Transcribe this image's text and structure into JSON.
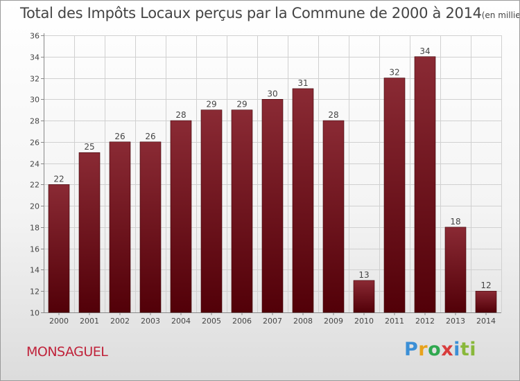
{
  "title": "Total des Impôts Locaux perçus par la Commune de 2000 à 2014",
  "unit": "(en milliers d'€)",
  "commune": "MONSAGUEL",
  "logo": {
    "text": "Proxiti",
    "letters": [
      "P",
      "r",
      "o",
      "x",
      "i",
      "ti"
    ]
  },
  "colors": {
    "bar_top": "#8a2a34",
    "bar_bottom": "#520008",
    "commune": "#c0223a",
    "grid": "#d0d0d0",
    "axis": "#888888"
  },
  "chart_data": {
    "type": "bar",
    "title": "Total des Impôts Locaux perçus par la Commune de 2000 à 2014",
    "xlabel": "",
    "ylabel": "",
    "categories": [
      "2000",
      "2001",
      "2002",
      "2003",
      "2004",
      "2005",
      "2006",
      "2007",
      "2008",
      "2009",
      "2010",
      "2011",
      "2012",
      "2013",
      "2014"
    ],
    "values": [
      22,
      25,
      26,
      26,
      28,
      29,
      29,
      30,
      31,
      28,
      13,
      32,
      34,
      18,
      12
    ],
    "ylim": [
      10,
      36
    ],
    "yticks": [
      10,
      12,
      14,
      16,
      18,
      20,
      22,
      24,
      26,
      28,
      30,
      32,
      34,
      36
    ],
    "grid": true,
    "data_labels": true
  }
}
